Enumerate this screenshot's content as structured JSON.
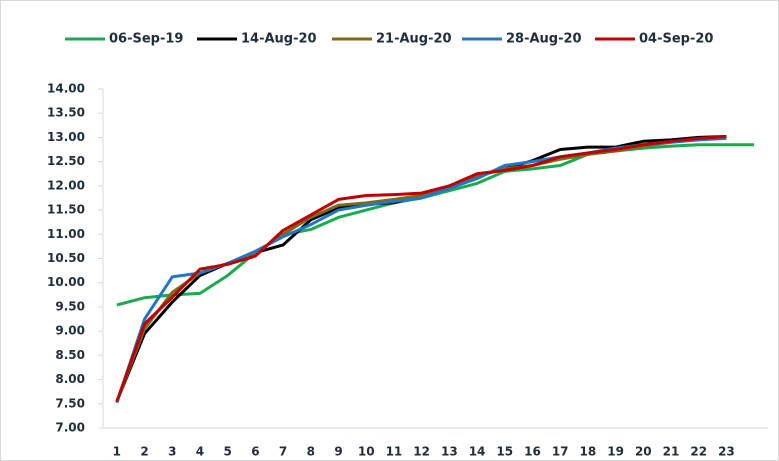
{
  "chart_data": {
    "type": "line",
    "categories": [
      "1",
      "2",
      "3",
      "4",
      "5",
      "6",
      "7",
      "8",
      "9",
      "10",
      "11",
      "12",
      "13",
      "14",
      "15",
      "16",
      "17",
      "18",
      "19",
      "20",
      "21",
      "22",
      "23",
      null
    ],
    "ylim": [
      7,
      14
    ],
    "yticks": [
      {
        "value": 7,
        "label": "7.00"
      },
      {
        "value": 7.5,
        "label": "7.50"
      },
      {
        "value": 8,
        "label": "8.00"
      },
      {
        "value": 8.5,
        "label": "8.50"
      },
      {
        "value": 9,
        "label": "9.00"
      },
      {
        "value": 9.5,
        "label": "9.50"
      },
      {
        "value": 10,
        "label": "10.00"
      },
      {
        "value": 10.5,
        "label": "10.50"
      },
      {
        "value": 11,
        "label": "11.00"
      },
      {
        "value": 11.5,
        "label": "11.50"
      },
      {
        "value": 12,
        "label": "12.00"
      },
      {
        "value": 12.5,
        "label": "12.50"
      },
      {
        "value": 13,
        "label": "13.00"
      },
      {
        "value": 13.5,
        "label": "13.50"
      },
      {
        "value": 14,
        "label": "14.00"
      }
    ],
    "legend": "top",
    "series": [
      {
        "name": "06-Sep-19",
        "color": "#1aab4f",
        "values": [
          9.54,
          9.69,
          9.75,
          9.78,
          10.15,
          10.62,
          10.99,
          11.1,
          11.35,
          11.5,
          11.65,
          11.75,
          11.9,
          12.05,
          12.3,
          12.35,
          12.42,
          12.65,
          12.72,
          12.78,
          12.82,
          12.85,
          12.85,
          12.85
        ]
      },
      {
        "name": "14-Aug-20",
        "color": "#000000",
        "values": [
          7.55,
          8.95,
          9.6,
          10.15,
          10.4,
          10.62,
          10.78,
          11.3,
          11.55,
          11.62,
          11.65,
          11.8,
          12.0,
          12.2,
          12.35,
          12.52,
          12.75,
          12.8,
          12.8,
          12.92,
          12.95,
          13.0,
          13.02,
          null
        ]
      },
      {
        "name": "21-Aug-20",
        "color": "#7f6a12",
        "values": [
          7.55,
          9.05,
          9.8,
          10.2,
          10.4,
          10.6,
          11.0,
          11.35,
          11.6,
          11.65,
          11.72,
          11.8,
          11.98,
          12.2,
          12.35,
          12.42,
          12.55,
          12.65,
          12.72,
          12.82,
          12.9,
          12.97,
          13.02,
          null
        ]
      },
      {
        "name": "28-Aug-20",
        "color": "#2176c7",
        "values": [
          7.52,
          9.25,
          10.12,
          10.2,
          10.4,
          10.65,
          10.95,
          11.2,
          11.5,
          11.6,
          11.68,
          11.75,
          11.95,
          12.15,
          12.42,
          12.5,
          12.6,
          12.68,
          12.78,
          12.85,
          12.9,
          12.95,
          12.98,
          null
        ]
      },
      {
        "name": "04-Sep-20",
        "color": "#c00000",
        "values": [
          7.55,
          9.15,
          9.7,
          10.28,
          10.38,
          10.55,
          11.08,
          11.4,
          11.72,
          11.8,
          11.82,
          11.85,
          12.0,
          12.25,
          12.32,
          12.42,
          12.6,
          12.68,
          12.75,
          12.85,
          12.92,
          12.98,
          13.02,
          null
        ]
      }
    ]
  }
}
